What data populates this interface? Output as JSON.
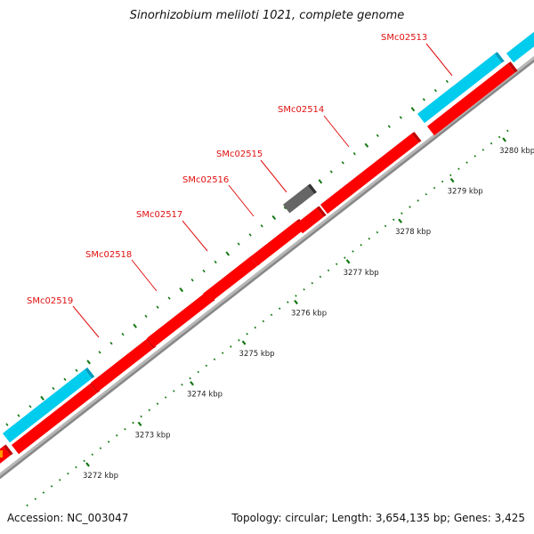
{
  "title": "Sinorhizobium meliloti 1021, complete genome",
  "footer": {
    "accession": "Accession: NC_003047",
    "summary": "Topology: circular; Length: 3,654,135 bp; Genes: 3,425"
  },
  "colors": {
    "gene_forward": "#ff0000",
    "gene_forward_dark": "#c00000",
    "gene_cyan": "#00ccee",
    "gene_cyan_dark": "#0099bb",
    "gene_gray": "#666666",
    "gene_gray_dark": "#333333",
    "backbone": "#b8b8b8",
    "ruler_dot": "#117711",
    "label": "#e01010"
  },
  "ruler": {
    "unit": "kbp",
    "ticks": [
      {
        "value": 3272,
        "label": "3272 kbp"
      },
      {
        "value": 3273,
        "label": "3273 kbp"
      },
      {
        "value": 3274,
        "label": "3274 kbp"
      },
      {
        "value": 3275,
        "label": "3275 kbp"
      },
      {
        "value": 3276,
        "label": "3276 kbp"
      },
      {
        "value": 3277,
        "label": "3277 kbp"
      },
      {
        "value": 3278,
        "label": "3278 kbp"
      },
      {
        "value": 3279,
        "label": "3279 kbp"
      },
      {
        "value": 3280,
        "label": "3280 kbp"
      }
    ]
  },
  "labels": [
    {
      "name": "SMc02519",
      "text": "SMc02519"
    },
    {
      "name": "SMc02518",
      "text": "SMc02518"
    },
    {
      "name": "SMc02517",
      "text": "SMc02517"
    },
    {
      "name": "SMc02516",
      "text": "SMc02516"
    },
    {
      "name": "SMc02515",
      "text": "SMc02515"
    },
    {
      "name": "SMc02514",
      "text": "SMc02514"
    },
    {
      "name": "SMc02513",
      "text": "SMc02513"
    }
  ]
}
